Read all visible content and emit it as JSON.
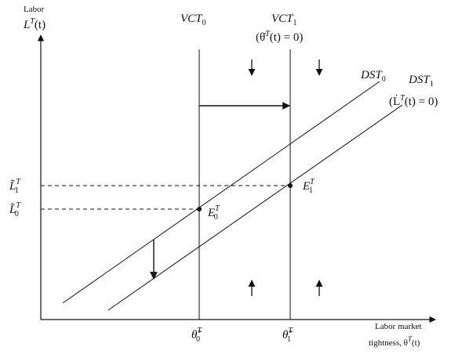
{
  "y_axis": {
    "line1": "Labor",
    "line2": "L",
    "line2_sup": "T",
    "line2_rest": "(t)"
  },
  "x_axis": {
    "line1": "Labor market",
    "line2": "tightness, θ",
    "line2_sup": "T",
    "line2_rest": "(t)"
  },
  "vct0": {
    "name": "VCT",
    "sub": "0"
  },
  "vct1": {
    "name": "VCT",
    "sub": "1",
    "cond": "(θ̇",
    "cond_sup": "T",
    "cond_rest": "(t) = 0)"
  },
  "dst0": {
    "name": "DST",
    "sub": "0"
  },
  "dst1": {
    "name": "DST",
    "sub": "1",
    "cond": "(L̇",
    "cond_sup": "T",
    "cond_rest": "(t) = 0)"
  },
  "equilibria": [
    {
      "label": "E",
      "sup": "T",
      "sub": "0"
    },
    {
      "label": "E",
      "sup": "T",
      "sub": "1"
    }
  ],
  "y_ticks": [
    {
      "label": "L̃",
      "sup": "T",
      "sub": "1"
    },
    {
      "label": "L̃",
      "sup": "T",
      "sub": "0"
    }
  ],
  "x_ticks": [
    {
      "label": "θ̃",
      "sup": "T",
      "sub": "0"
    },
    {
      "label": "θ̃",
      "sup": "T",
      "sub": "1"
    }
  ]
}
